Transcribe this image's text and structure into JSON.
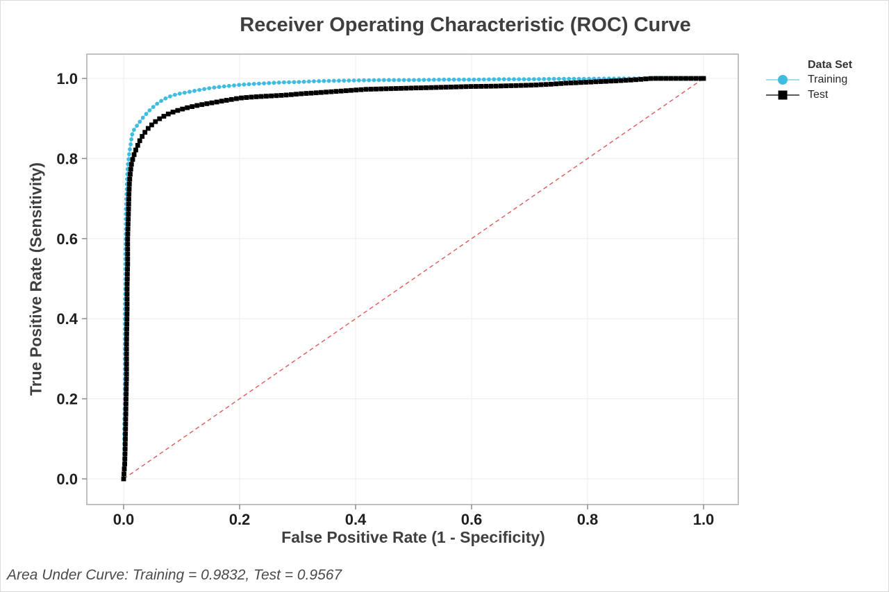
{
  "chart_data": {
    "type": "line",
    "title": "Receiver Operating Characteristic (ROC) Curve",
    "xlabel": "False Positive Rate (1 - Specificity)",
    "ylabel": "True Positive Rate (Sensitivity)",
    "legend_title": "Data Set",
    "grid": true,
    "legend_position": "right",
    "xlim": [
      -0.064,
      1.062
    ],
    "ylim": [
      -0.064,
      1.062
    ],
    "x_ticks": [
      {
        "v": 0.0,
        "label": "0.0"
      },
      {
        "v": 0.2,
        "label": "0.2"
      },
      {
        "v": 0.4,
        "label": "0.4"
      },
      {
        "v": 0.6,
        "label": "0.6"
      },
      {
        "v": 0.8,
        "label": "0.8"
      },
      {
        "v": 1.0,
        "label": "1.0"
      }
    ],
    "y_ticks": [
      {
        "v": 0.0,
        "label": "0.0"
      },
      {
        "v": 0.2,
        "label": "0.2"
      },
      {
        "v": 0.4,
        "label": "0.4"
      },
      {
        "v": 0.6,
        "label": "0.6"
      },
      {
        "v": 0.8,
        "label": "0.8"
      },
      {
        "v": 1.0,
        "label": "1.0"
      }
    ],
    "reference_line": {
      "from": [
        0,
        0
      ],
      "to": [
        1,
        1
      ],
      "color": "#E25757",
      "style": "dashed"
    },
    "series": [
      {
        "name": "Training",
        "auc": 0.9832,
        "marker": "circle",
        "color": "#3FBCDF",
        "line_color": "#7FD3EA",
        "legend_line_color": "#9FDCEE",
        "points": [
          [
            0.0,
            0.0
          ],
          [
            0.001,
            0.05
          ],
          [
            0.001,
            0.12
          ],
          [
            0.002,
            0.2
          ],
          [
            0.002,
            0.3
          ],
          [
            0.002,
            0.4
          ],
          [
            0.003,
            0.5
          ],
          [
            0.003,
            0.56
          ],
          [
            0.004,
            0.62
          ],
          [
            0.004,
            0.67
          ],
          [
            0.005,
            0.71
          ],
          [
            0.006,
            0.75
          ],
          [
            0.007,
            0.78
          ],
          [
            0.009,
            0.805
          ],
          [
            0.011,
            0.825
          ],
          [
            0.013,
            0.845
          ],
          [
            0.015,
            0.862
          ],
          [
            0.018,
            0.872
          ],
          [
            0.022,
            0.88
          ],
          [
            0.026,
            0.888
          ],
          [
            0.03,
            0.896
          ],
          [
            0.035,
            0.905
          ],
          [
            0.04,
            0.913
          ],
          [
            0.046,
            0.922
          ],
          [
            0.052,
            0.93
          ],
          [
            0.058,
            0.937
          ],
          [
            0.065,
            0.944
          ],
          [
            0.072,
            0.95
          ],
          [
            0.08,
            0.955
          ],
          [
            0.09,
            0.96
          ],
          [
            0.1,
            0.963
          ],
          [
            0.115,
            0.967
          ],
          [
            0.13,
            0.971
          ],
          [
            0.145,
            0.975
          ],
          [
            0.16,
            0.978
          ],
          [
            0.18,
            0.981
          ],
          [
            0.2,
            0.984
          ],
          [
            0.22,
            0.986
          ],
          [
            0.245,
            0.988
          ],
          [
            0.27,
            0.99
          ],
          [
            0.3,
            0.991
          ],
          [
            0.33,
            0.993
          ],
          [
            0.36,
            0.994
          ],
          [
            0.4,
            0.995
          ],
          [
            0.45,
            0.996
          ],
          [
            0.5,
            0.996
          ],
          [
            0.55,
            0.997
          ],
          [
            0.6,
            0.997
          ],
          [
            0.65,
            0.998
          ],
          [
            0.7,
            0.998
          ],
          [
            0.75,
            0.999
          ],
          [
            0.8,
            0.999
          ],
          [
            0.85,
            1.0
          ],
          [
            0.9,
            1.0
          ],
          [
            1.0,
            1.0
          ]
        ]
      },
      {
        "name": "Test",
        "auc": 0.9567,
        "marker": "square",
        "color": "#000000",
        "line_color": "#111111",
        "legend_line_color": "#5A5A5A",
        "points": [
          [
            0.0,
            0.0
          ],
          [
            0.002,
            0.04
          ],
          [
            0.003,
            0.1
          ],
          [
            0.004,
            0.18
          ],
          [
            0.005,
            0.26
          ],
          [
            0.005,
            0.34
          ],
          [
            0.006,
            0.42
          ],
          [
            0.006,
            0.48
          ],
          [
            0.007,
            0.54
          ],
          [
            0.007,
            0.6
          ],
          [
            0.008,
            0.65
          ],
          [
            0.009,
            0.7
          ],
          [
            0.01,
            0.74
          ],
          [
            0.012,
            0.77
          ],
          [
            0.014,
            0.79
          ],
          [
            0.017,
            0.805
          ],
          [
            0.02,
            0.818
          ],
          [
            0.024,
            0.832
          ],
          [
            0.028,
            0.845
          ],
          [
            0.033,
            0.858
          ],
          [
            0.038,
            0.868
          ],
          [
            0.044,
            0.878
          ],
          [
            0.05,
            0.886
          ],
          [
            0.057,
            0.895
          ],
          [
            0.065,
            0.902
          ],
          [
            0.075,
            0.91
          ],
          [
            0.085,
            0.916
          ],
          [
            0.095,
            0.921
          ],
          [
            0.11,
            0.927
          ],
          [
            0.125,
            0.932
          ],
          [
            0.14,
            0.936
          ],
          [
            0.16,
            0.941
          ],
          [
            0.18,
            0.946
          ],
          [
            0.2,
            0.951
          ],
          [
            0.225,
            0.954
          ],
          [
            0.25,
            0.956
          ],
          [
            0.275,
            0.958
          ],
          [
            0.3,
            0.961
          ],
          [
            0.33,
            0.964
          ],
          [
            0.36,
            0.967
          ],
          [
            0.39,
            0.97
          ],
          [
            0.42,
            0.973
          ],
          [
            0.45,
            0.974
          ],
          [
            0.5,
            0.976
          ],
          [
            0.55,
            0.978
          ],
          [
            0.6,
            0.98
          ],
          [
            0.65,
            0.981
          ],
          [
            0.7,
            0.983
          ],
          [
            0.73,
            0.985
          ],
          [
            0.76,
            0.988
          ],
          [
            0.79,
            0.99
          ],
          [
            0.82,
            0.992
          ],
          [
            0.85,
            0.994
          ],
          [
            0.875,
            0.996
          ],
          [
            0.895,
            0.998
          ],
          [
            0.91,
            1.0
          ],
          [
            1.0,
            1.0
          ]
        ]
      }
    ],
    "colors": {
      "grid": "#ECECEC",
      "plot_border": "#ACACAC",
      "tick": "#8A8A8A",
      "tick_label": "#1F1F1F"
    }
  },
  "footer": {
    "text": "Area Under Curve: Training = 0.9832, Test = 0.9567"
  }
}
